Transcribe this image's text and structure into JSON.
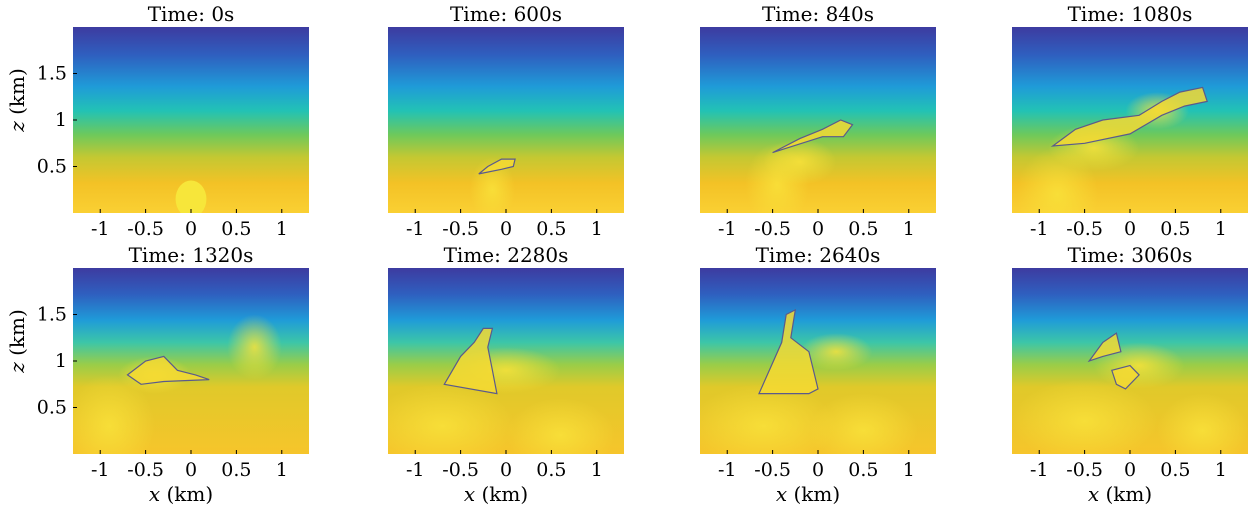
{
  "chart_data": [
    {
      "type": "heatmap",
      "title": "Time: 0s",
      "xlabel": "",
      "ylabel": "z (km)",
      "xlim": [
        -1.3,
        1.3
      ],
      "ylim": [
        0,
        2
      ],
      "xticks": [
        -1,
        -0.5,
        0,
        0.5,
        1
      ],
      "xtick_labels": [
        "-1",
        "-0.5",
        "0",
        "0.5",
        "1"
      ],
      "yticks": [
        0.5,
        1,
        1.5
      ],
      "ytick_labels": [
        "0.5",
        "1",
        "1.5"
      ],
      "bubble_outline": false
    },
    {
      "type": "heatmap",
      "title": "Time: 600s",
      "xlabel": "",
      "ylabel": "",
      "xlim": [
        -1.3,
        1.3
      ],
      "ylim": [
        0,
        2
      ],
      "xticks": [
        -1,
        -0.5,
        0,
        0.5,
        1
      ],
      "xtick_labels": [
        "-1",
        "-0.5",
        "0",
        "0.5",
        "1"
      ],
      "yticks": [],
      "ytick_labels": [],
      "bubble_outline": true
    },
    {
      "type": "heatmap",
      "title": "Time: 840s",
      "xlabel": "",
      "ylabel": "",
      "xlim": [
        -1.3,
        1.3
      ],
      "ylim": [
        0,
        2
      ],
      "xticks": [
        -1,
        -0.5,
        0,
        0.5,
        1
      ],
      "xtick_labels": [
        "-1",
        "-0.5",
        "0",
        "0.5",
        "1"
      ],
      "yticks": [],
      "ytick_labels": [],
      "bubble_outline": true
    },
    {
      "type": "heatmap",
      "title": "Time: 1080s",
      "xlabel": "",
      "ylabel": "",
      "xlim": [
        -1.3,
        1.3
      ],
      "ylim": [
        0,
        2
      ],
      "xticks": [
        -1,
        -0.5,
        0,
        0.5,
        1
      ],
      "xtick_labels": [
        "-1",
        "-0.5",
        "0",
        "0.5",
        "1"
      ],
      "yticks": [],
      "ytick_labels": [],
      "bubble_outline": true
    },
    {
      "type": "heatmap",
      "title": "Time: 1320s",
      "xlabel": "x (km)",
      "ylabel": "z (km)",
      "xlim": [
        -1.3,
        1.3
      ],
      "ylim": [
        0,
        2
      ],
      "xticks": [
        -1,
        -0.5,
        0,
        0.5,
        1
      ],
      "xtick_labels": [
        "-1",
        "-0.5",
        "0",
        "0.5",
        "1"
      ],
      "yticks": [
        0.5,
        1,
        1.5
      ],
      "ytick_labels": [
        "0.5",
        "1",
        "1.5"
      ],
      "bubble_outline": true
    },
    {
      "type": "heatmap",
      "title": "Time: 2280s",
      "xlabel": "x (km)",
      "ylabel": "",
      "xlim": [
        -1.3,
        1.3
      ],
      "ylim": [
        0,
        2
      ],
      "xticks": [
        -1,
        -0.5,
        0,
        0.5,
        1
      ],
      "xtick_labels": [
        "-1",
        "-0.5",
        "0",
        "0.5",
        "1"
      ],
      "yticks": [],
      "ytick_labels": [],
      "bubble_outline": true
    },
    {
      "type": "heatmap",
      "title": "Time: 2640s",
      "xlabel": "x (km)",
      "ylabel": "",
      "xlim": [
        -1.3,
        1.3
      ],
      "ylim": [
        0,
        2
      ],
      "xticks": [
        -1,
        -0.5,
        0,
        0.5,
        1
      ],
      "xtick_labels": [
        "-1",
        "-0.5",
        "0",
        "0.5",
        "1"
      ],
      "yticks": [],
      "ytick_labels": [],
      "bubble_outline": true
    },
    {
      "type": "heatmap",
      "title": "Time: 3060s",
      "xlabel": "x (km)",
      "ylabel": "",
      "xlim": [
        -1.3,
        1.3
      ],
      "ylim": [
        0,
        2
      ],
      "xticks": [
        -1,
        -0.5,
        0,
        0.5,
        1
      ],
      "xtick_labels": [
        "-1",
        "-0.5",
        "0",
        "0.5",
        "1"
      ],
      "yticks": [],
      "ytick_labels": [],
      "bubble_outline": true
    }
  ],
  "colors": {
    "colormap": [
      "#3d3ba0",
      "#2f5fbf",
      "#1f9bd8",
      "#22c2b5",
      "#6ec95b",
      "#c4c832",
      "#f3c226",
      "#fad033",
      "#f8e430"
    ],
    "outline": "#5a5a8c"
  }
}
